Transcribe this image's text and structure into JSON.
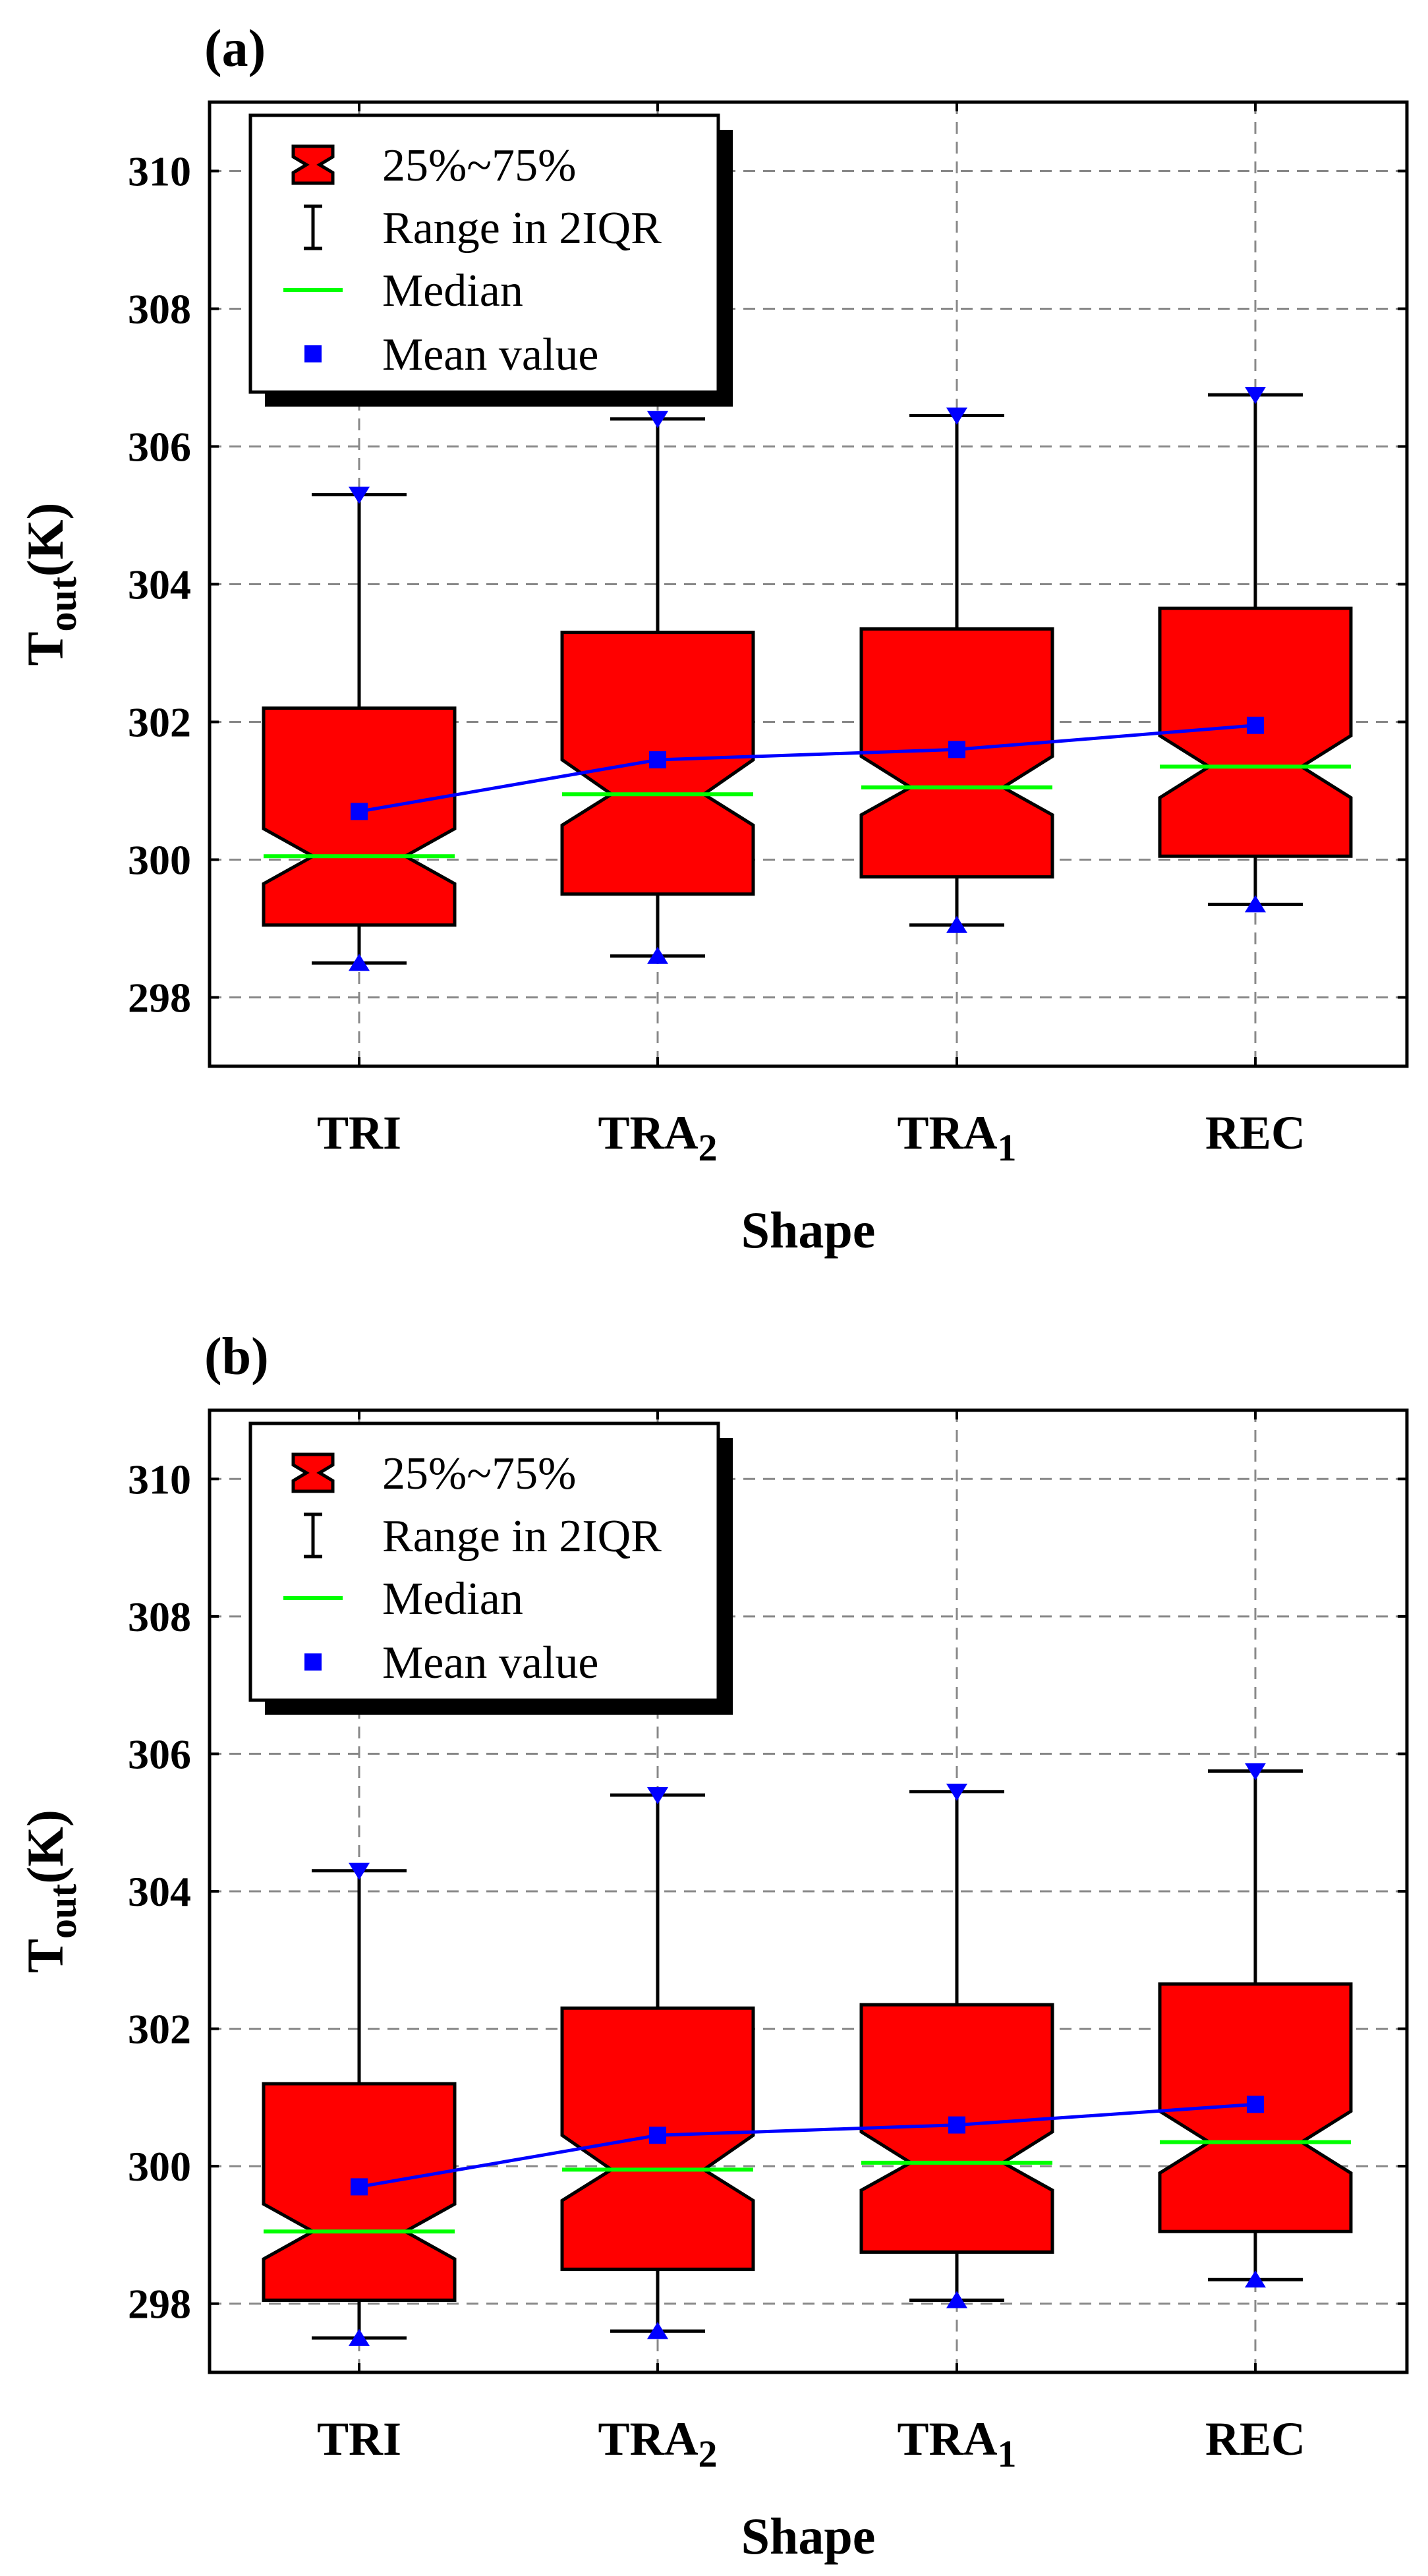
{
  "colors": {
    "box_fill": "#ff0000",
    "median": "#00ff00",
    "mean": "#0000ff",
    "grid": "#888888",
    "axis": "#000000"
  },
  "legend": {
    "box": "25%~75%",
    "whisker": "Range in 2IQR",
    "median": "Median",
    "mean": "Mean value"
  },
  "chart_data": [
    {
      "type": "box",
      "panel_label": "(a)",
      "xlabel": "Shape",
      "ylabel": "T",
      "ylabel_sub": "out",
      "ylabel_unit": "(K)",
      "ylim": [
        297,
        311
      ],
      "yticks": [
        298,
        300,
        302,
        304,
        306,
        308,
        310
      ],
      "categories": [
        {
          "name": "TRI",
          "sub": ""
        },
        {
          "name": "TRA",
          "sub": "2"
        },
        {
          "name": "TRA",
          "sub": "1"
        },
        {
          "name": "REC",
          "sub": ""
        }
      ],
      "boxes": [
        {
          "q1": 299.05,
          "median": 300.05,
          "q3": 302.2,
          "whisker_low": 298.5,
          "whisker_high": 305.3,
          "mean": 300.7,
          "notch_low": 299.65,
          "notch_high": 300.45
        },
        {
          "q1": 299.5,
          "median": 300.95,
          "q3": 303.3,
          "whisker_low": 298.6,
          "whisker_high": 306.4,
          "mean": 301.45,
          "notch_low": 300.5,
          "notch_high": 301.45
        },
        {
          "q1": 299.75,
          "median": 301.05,
          "q3": 303.35,
          "whisker_low": 299.05,
          "whisker_high": 306.45,
          "mean": 301.6,
          "notch_low": 300.65,
          "notch_high": 301.5
        },
        {
          "q1": 300.05,
          "median": 301.35,
          "q3": 303.65,
          "whisker_low": 299.35,
          "whisker_high": 306.75,
          "mean": 301.95,
          "notch_low": 300.9,
          "notch_high": 301.8
        }
      ]
    },
    {
      "type": "box",
      "panel_label": "(b)",
      "xlabel": "Shape",
      "ylabel": "T",
      "ylabel_sub": "out",
      "ylabel_unit": "(K)",
      "ylim": [
        297,
        311
      ],
      "yticks": [
        298,
        300,
        302,
        304,
        306,
        308,
        310
      ],
      "categories": [
        {
          "name": "TRI",
          "sub": ""
        },
        {
          "name": "TRA",
          "sub": "2"
        },
        {
          "name": "TRA",
          "sub": "1"
        },
        {
          "name": "REC",
          "sub": ""
        }
      ],
      "boxes": [
        {
          "q1": 298.05,
          "median": 299.05,
          "q3": 301.2,
          "whisker_low": 297.5,
          "whisker_high": 304.3,
          "mean": 299.7,
          "notch_low": 298.65,
          "notch_high": 299.45
        },
        {
          "q1": 298.5,
          "median": 299.95,
          "q3": 302.3,
          "whisker_low": 297.6,
          "whisker_high": 305.4,
          "mean": 300.45,
          "notch_low": 299.5,
          "notch_high": 300.45
        },
        {
          "q1": 298.75,
          "median": 300.05,
          "q3": 302.35,
          "whisker_low": 298.05,
          "whisker_high": 305.45,
          "mean": 300.6,
          "notch_low": 299.65,
          "notch_high": 300.5
        },
        {
          "q1": 299.05,
          "median": 300.35,
          "q3": 302.65,
          "whisker_low": 298.35,
          "whisker_high": 305.75,
          "mean": 300.9,
          "notch_low": 299.9,
          "notch_high": 300.8
        }
      ]
    }
  ]
}
